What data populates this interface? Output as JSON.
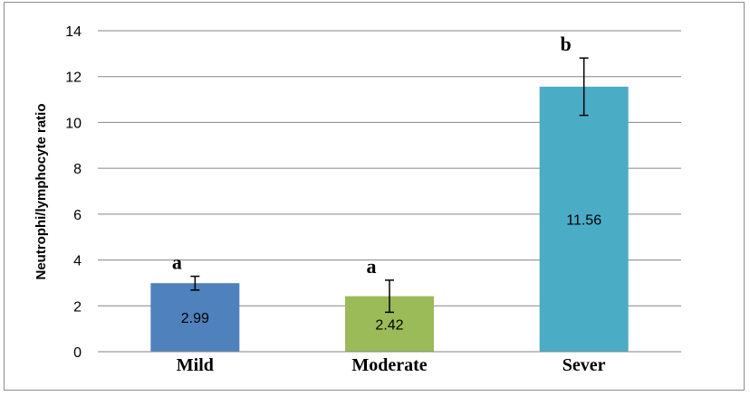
{
  "chart_data": {
    "type": "bar",
    "title": "",
    "xlabel": "",
    "ylabel": "Neutrophi/lymphocyte ratio",
    "categories": [
      "Mild",
      "Moderate",
      "Sever"
    ],
    "values": [
      2.99,
      2.42,
      11.56
    ],
    "errors": [
      0.3,
      0.7,
      1.25
    ],
    "value_labels": [
      "2.99",
      "2.42",
      "11.56"
    ],
    "significance_labels": [
      "a",
      "a",
      "b"
    ],
    "colors": [
      "#4f81bd",
      "#9bbb59",
      "#4bacc6"
    ],
    "ylim": [
      0,
      14
    ],
    "yticks": [
      0,
      2,
      4,
      6,
      8,
      10,
      12,
      14
    ],
    "grid": true,
    "legend": "none"
  }
}
